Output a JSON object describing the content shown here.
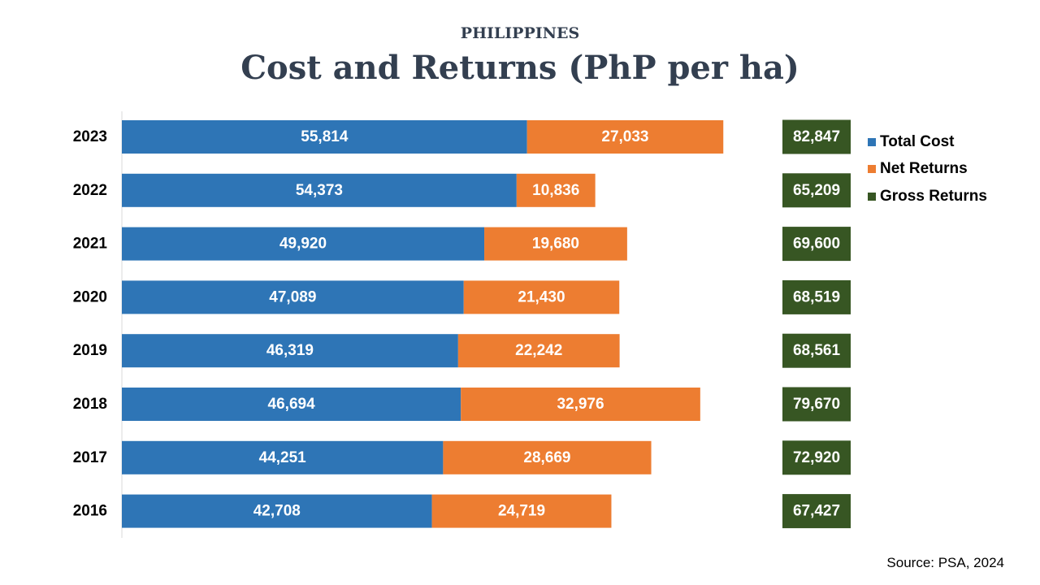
{
  "header": {
    "subtitle": "PHILIPPINES",
    "title": "Cost and Returns (PhP per ha)"
  },
  "source": "Source: PSA, 2024",
  "colors": {
    "total_cost": "#2e75b6",
    "net_returns": "#ed7d31",
    "gross_returns": "#375623",
    "axis": "#d9d9d9"
  },
  "chart_data": {
    "type": "bar",
    "orientation": "horizontal",
    "stacked": true,
    "categories": [
      "2023",
      "2022",
      "2021",
      "2020",
      "2019",
      "2018",
      "2017",
      "2016"
    ],
    "series": [
      {
        "name": "Total Cost",
        "values": [
          55814,
          54373,
          49920,
          47089,
          46319,
          46694,
          44251,
          42708
        ],
        "labels": [
          "55,814",
          "54,373",
          "49,920",
          "47,089",
          "46,319",
          "46,694",
          "44,251",
          "42,708"
        ]
      },
      {
        "name": "Net Returns",
        "values": [
          27033,
          10836,
          19680,
          21430,
          22242,
          32976,
          28669,
          24719
        ],
        "labels": [
          "27,033",
          "10,836",
          "19,680",
          "21,430",
          "22,242",
          "32,976",
          "28,669",
          "24,719"
        ]
      },
      {
        "name": "Gross Returns",
        "values": [
          82847,
          65209,
          69600,
          68519,
          68561,
          79670,
          72920,
          67427
        ],
        "labels": [
          "82,847",
          "65,209",
          "69,600",
          "68,519",
          "68,561",
          "79,670",
          "72,920",
          "67,427"
        ]
      }
    ],
    "legend_position": "top-right",
    "grid": false
  }
}
